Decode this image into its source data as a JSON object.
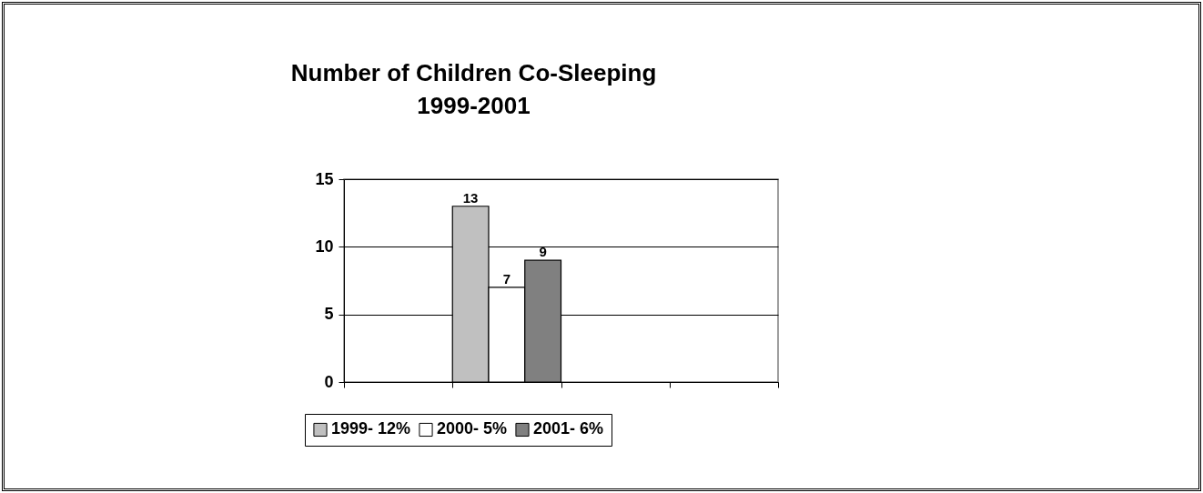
{
  "chart_data": {
    "type": "bar",
    "title": [
      "Number of Children Co-Sleeping",
      "1999-2001"
    ],
    "categories": [
      null,
      null,
      null,
      null
    ],
    "series": [
      {
        "name": "1999- 12%",
        "color": "#c0c0c0",
        "values": [
          null,
          13,
          null,
          null
        ]
      },
      {
        "name": "2000- 5%",
        "color": "#ffffff",
        "values": [
          null,
          7,
          null,
          null
        ]
      },
      {
        "name": "2001- 6%",
        "color": "#808080",
        "values": [
          null,
          9,
          null,
          null
        ]
      }
    ],
    "ylim": [
      0,
      15
    ],
    "yticks": [
      0,
      5,
      10,
      15
    ],
    "grid": "y",
    "legend": "bottom",
    "data_labels": true
  }
}
